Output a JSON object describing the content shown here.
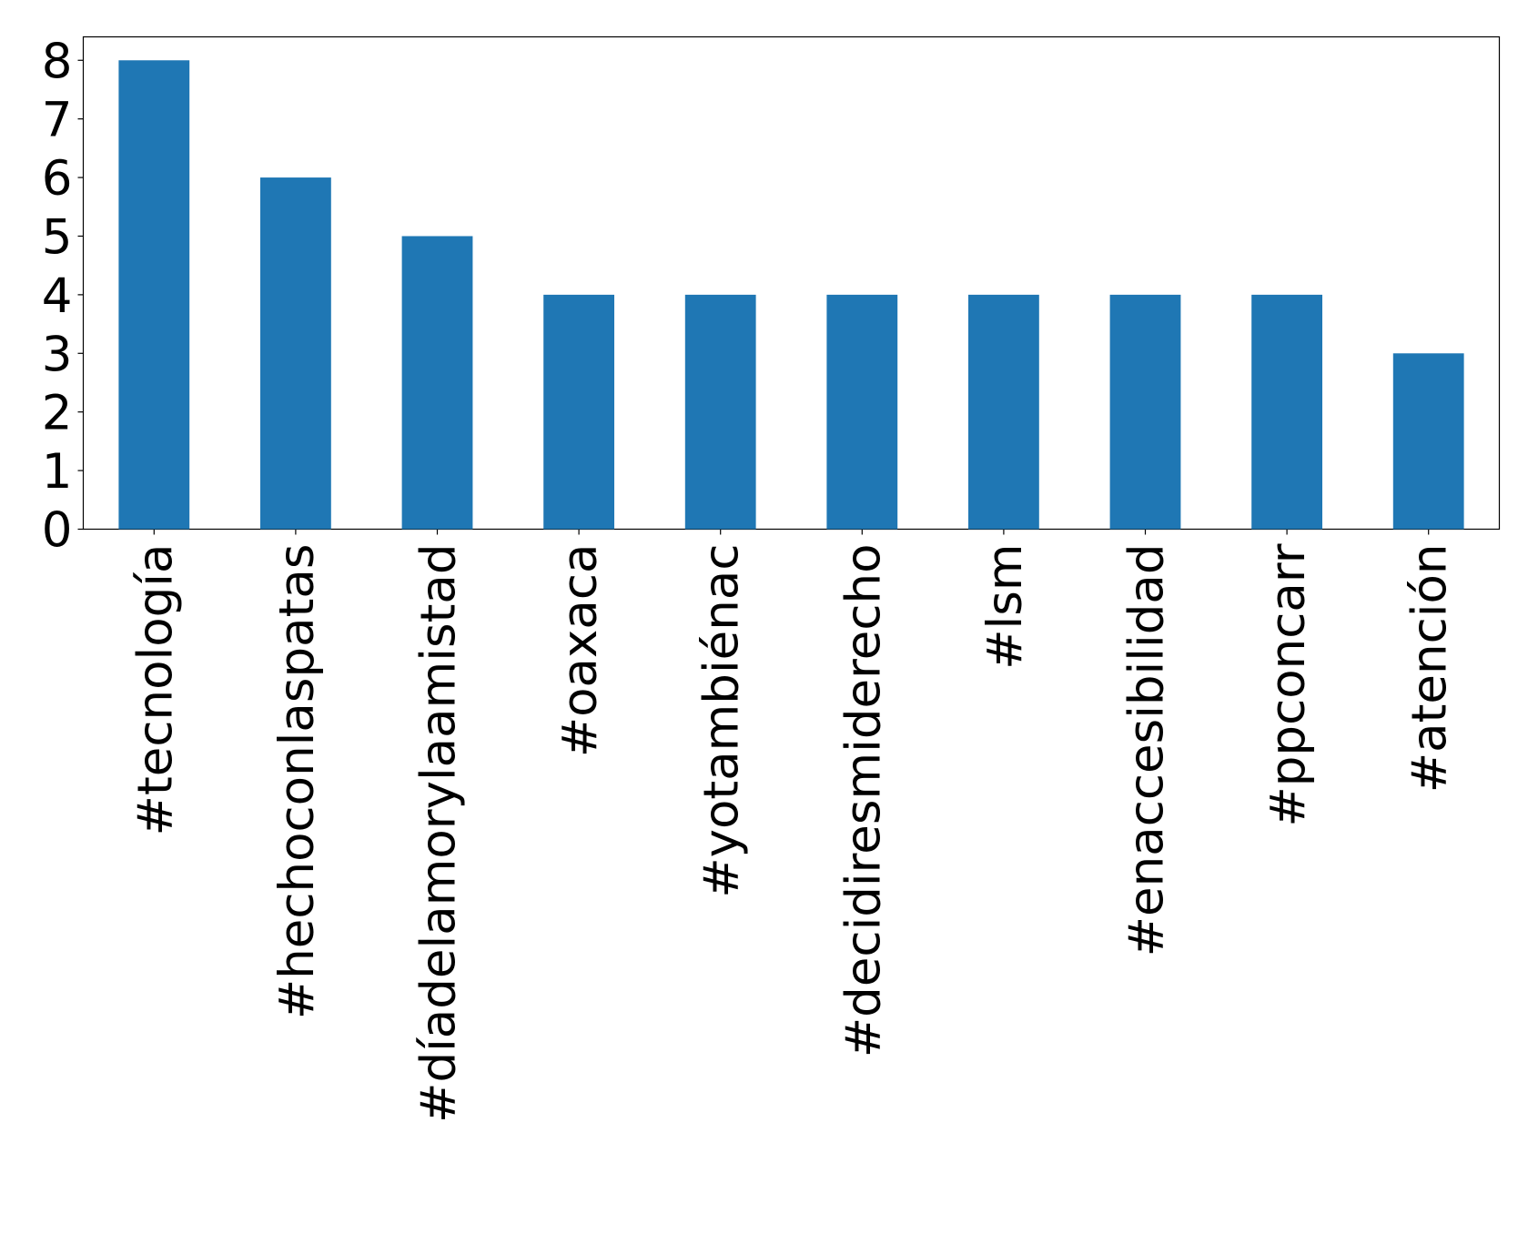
{
  "chart_data": {
    "type": "bar",
    "categories": [
      "#tecnología",
      "#hechoconlaspatas",
      "#díadelamorylaamistad",
      "#oaxaca",
      "#yotambiénac",
      "#decidiresmiderecho",
      "#lsm",
      "#enaccesibilidad",
      "#ppconcarr",
      "#atención"
    ],
    "values": [
      8,
      6,
      5,
      4,
      4,
      4,
      4,
      4,
      4,
      3
    ],
    "color": "#1f77b4",
    "ylim": [
      0,
      8.4
    ],
    "yticks": [
      0,
      1,
      2,
      3,
      4,
      5,
      6,
      7,
      8
    ],
    "grid": false
  }
}
